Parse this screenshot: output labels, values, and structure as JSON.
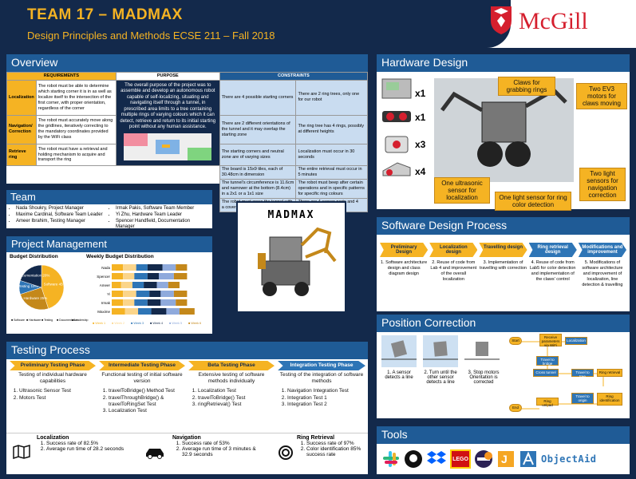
{
  "header": {
    "title": "TEAM 17 – MADMAX",
    "course": "Design Principles and Methods ECSE 211 – Fall 2018",
    "university": "McGill"
  },
  "overview": {
    "title": "Overview",
    "req_header": "REQUIREMENTS",
    "purpose_header": "PURPOSE",
    "constraints_header": "CONSTRAINTS",
    "rows": [
      {
        "label": "Localization",
        "text": "The robot must be able to determine which starting corner it is in as well as localize itself to the intersection of the first corner, with proper orientation, regardless of the corner"
      },
      {
        "label": "Navigation/ Correction",
        "text": "The robot must accurately move along the gridlines, iteratively correcting to the mandatory coordinates provided by the WiFi class"
      },
      {
        "label": "Retrieve ring",
        "text": "The robot must have a retrieval and holding mechanism to acquire and transport the ring"
      }
    ],
    "purpose": "The overall purpose of the project was to assemble and develop an autonomous robot capable of self-localizing, situating and navigating itself through a tunnel, in prescribed area limits to a tree containing multiple rings of varying colours which it can detect, retrieve and return to its initial starting point without any human assistance.",
    "constraints": [
      [
        "There are 4 possible starting corners",
        "There are 2 ring trees, only one for our robot"
      ],
      [
        "There are 2 different orientations of the tunnel and it may overlap the starting zone",
        "The ring tree has 4 rings, possibly at different heights"
      ],
      [
        "The starting corners and neutral zone are of varying sizes",
        "Localization must occur in 30 seconds"
      ],
      [
        "The board is 15x9 tiles, each of 30.48cm in dimension",
        "The entire retrieval must occur in 5 minutes"
      ],
      [
        "The tunnel's circumference is 11.6cm and narrower at the bottom (8.4cm) in a 2x1 or a 1x1 size",
        "The robot must beep after certain operations and in specific patterns for specific ring colours"
      ],
      [
        "The robot must cross the tunnel with a cover of fixed size",
        "There are 4 sensor ports and 4 motor ports on the brick"
      ]
    ]
  },
  "team": {
    "title": "Team",
    "members_left": [
      "Nada Shoukry, Project Manager",
      "Maxime Cardinal, Software Team Leader",
      "Ameer Ibrahim, Testing Manager"
    ],
    "members_right": [
      "Irmak Pakis, Software Team Member",
      "Yi Zhu, Hardware Team Leader",
      "Spencer Handfield, Documentation Manager"
    ]
  },
  "logo_text": "MADMAX",
  "project_management": {
    "title": "Project Management",
    "budget_title": "Budget Distribution",
    "weekly_title": "Weekly Budget Distribution",
    "pie": [
      {
        "label": "Software",
        "value": 45,
        "color": "#f5b323"
      },
      {
        "label": "Hardware",
        "value": 25,
        "color": "#c4881a"
      },
      {
        "label": "Testing",
        "value": 10,
        "color": "#2e75b6"
      },
      {
        "label": "Documentation",
        "value": 20,
        "color": "#13294b"
      },
      {
        "label": "Leadership",
        "value": 0,
        "color": "#8faadc"
      }
    ],
    "pie_legend": [
      "Software",
      "Hardware",
      "Testing",
      "Documentation",
      "Leadership"
    ],
    "people": [
      "Nada",
      "Spencer",
      "Ameer",
      "Yi",
      "Irmak",
      "Maxime"
    ],
    "weeks": [
      "Week 1",
      "Week 2",
      "Week 3",
      "Week 4",
      "Week 5",
      "Week 6"
    ],
    "week_colors": [
      "#f5b323",
      "#fbd58a",
      "#2e75b6",
      "#13294b",
      "#8faadc",
      "#c4881a"
    ],
    "weekly": [
      [
        6,
        7,
        6,
        8,
        7,
        6
      ],
      [
        6,
        6,
        7,
        6,
        8,
        7
      ],
      [
        5,
        6,
        6,
        7,
        6,
        6
      ],
      [
        6,
        7,
        7,
        6,
        7,
        7
      ],
      [
        6,
        6,
        7,
        7,
        8,
        6
      ],
      [
        7,
        7,
        7,
        8,
        7,
        8
      ]
    ]
  },
  "testing": {
    "title": "Testing Process",
    "stages": [
      {
        "title": "Preliminary Testing Phase",
        "desc": "Testing of individual hardware capabilities",
        "items": [
          "Ultrasonic Sensor Test",
          "Motors Test"
        ]
      },
      {
        "title": "Intermediate Testing Phase",
        "desc": "Functional testing of initial software version",
        "items": [
          "travelToBridge() Method Test",
          "travelThroughBridge() & travelToRingSet Test",
          "Localization Test"
        ]
      },
      {
        "title": "Beta Testing Phase",
        "desc": "Extensive testing of software methods individually",
        "items": [
          "Localization Test",
          "travelToBridge() Test",
          "ringRetrieval() Test"
        ]
      },
      {
        "title": "Integration Testing Phase",
        "desc": "Testing of the integration of software methods",
        "items": [
          "Navigation Integration Test",
          "Integration Test 1",
          "Integration Test 2"
        ]
      }
    ],
    "results": [
      {
        "title": "Localization",
        "items": [
          "Success rate of 82.5%",
          "Average run time of 28.2 seconds"
        ]
      },
      {
        "title": "Navigation",
        "items": [
          "Success rate of 53%",
          "Average run time of 3 minutes & 32.9 seconds"
        ]
      },
      {
        "title": "Ring Retrieval",
        "items": [
          "Success rate of 97%",
          "Color identification 85% success rate"
        ]
      }
    ]
  },
  "hardware": {
    "title": "Hardware Design",
    "counts": [
      "x1",
      "x1",
      "x3",
      "x4"
    ],
    "callouts": [
      "Claws for grabbing rings",
      "Two EV3 motors for claws moving",
      "One ultrasonic sensor for localization",
      "One light sensor for ring color detection",
      "Two light sensors for navigation correction"
    ]
  },
  "software": {
    "title": "Software Design Process",
    "stages": [
      "Preliminary Design",
      "Localization design",
      "Travelling design",
      "Ring retrieval design",
      "Modifications and improvement"
    ],
    "steps": [
      "1. Software architecture design and class diagram design",
      "2. Reuse of code from Lab 4 and improvement of the overall localization",
      "3. Implementation of travelling with correction",
      "4. Reuse of code from Lab5 for color detection and implementation of the claws' control",
      "5. Modifications of software architecture and improvement of localization, line detection & travelling"
    ]
  },
  "position": {
    "title": "Position Correction",
    "steps": [
      "1. A sensor detects a line",
      "2. Turn until the other sensor detects a line",
      "3. Stop motors Orientation is corrected"
    ],
    "flow": [
      "Start",
      "Receive parameters via WiFi",
      "Localization",
      "Travel to bridge",
      "Cross tunnel",
      "Travel to tree",
      "Ring retrieval",
      "Ring unload",
      "Travel to origin",
      "Ring identification",
      "End"
    ]
  },
  "tools": {
    "title": "Tools",
    "names": [
      "Slack",
      "GitHub",
      "Dropbox",
      "LEGO",
      "Eclipse",
      "Jira",
      "ObjectAid"
    ]
  }
}
